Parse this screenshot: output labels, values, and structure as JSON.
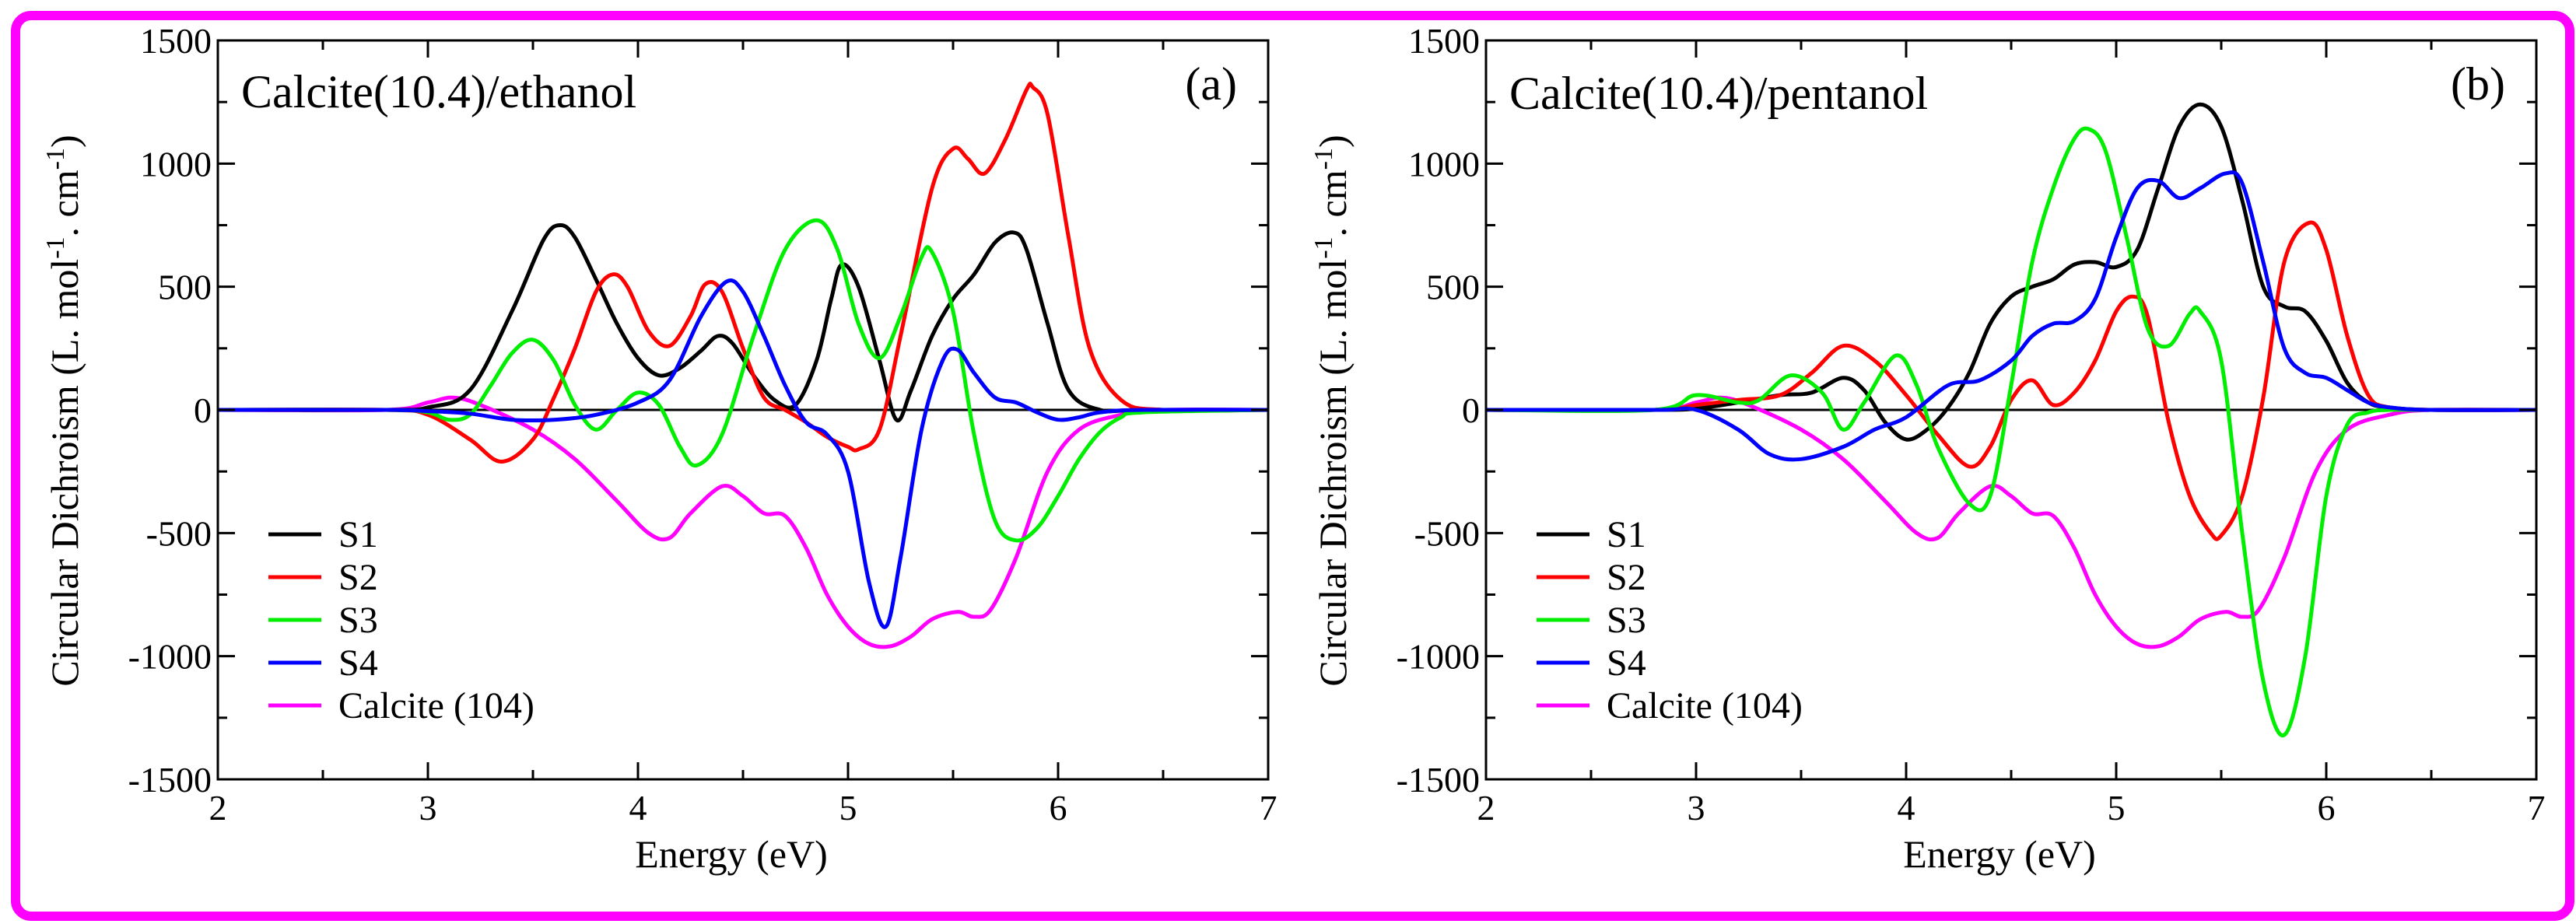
{
  "figure": {
    "border_color": "#ff00ff"
  },
  "chart_data": [
    {
      "type": "line",
      "title": "Calcite(10.4)/ethanol",
      "panel_label": "(a)",
      "xlabel": "Energy (eV)",
      "ylabel": "Circular Dichroism (L. mol-1. cm-1)",
      "ylabel_parts": {
        "main": "Circular Dichroism (L. mol",
        "sup1": "-1",
        "mid": ". cm",
        "sup2": "-1",
        "end": ")"
      },
      "xlim": [
        2,
        7
      ],
      "ylim": [
        -1500,
        1500
      ],
      "xticks": [
        "2",
        "3",
        "4",
        "5",
        "6",
        "7"
      ],
      "yticks": [
        "1500",
        "1000",
        "500",
        "0",
        "-500",
        "-1000",
        "-1500"
      ],
      "legend_position": "bottom-left",
      "series": [
        {
          "name": "S1",
          "color": "#000000",
          "x": [
            2.0,
            2.8,
            3.0,
            3.2,
            3.4,
            3.55,
            3.63,
            3.7,
            3.8,
            3.9,
            4.0,
            4.1,
            4.2,
            4.3,
            4.38,
            4.45,
            4.55,
            4.65,
            4.75,
            4.85,
            4.92,
            4.97,
            5.05,
            5.15,
            5.23,
            5.3,
            5.4,
            5.5,
            5.6,
            5.7,
            5.79,
            5.85,
            5.95,
            6.05,
            6.2,
            6.4,
            7.0
          ],
          "values": [
            0,
            0,
            10,
            80,
            400,
            690,
            750,
            700,
            530,
            350,
            210,
            140,
            170,
            240,
            300,
            270,
            140,
            40,
            20,
            200,
            450,
            590,
            500,
            200,
            -40,
            80,
            300,
            450,
            550,
            680,
            720,
            650,
            350,
            80,
            0,
            0,
            0
          ]
        },
        {
          "name": "S2",
          "color": "#ff0000",
          "x": [
            2.0,
            2.8,
            3.0,
            3.2,
            3.35,
            3.5,
            3.6,
            3.7,
            3.8,
            3.88,
            3.95,
            4.05,
            4.15,
            4.25,
            4.32,
            4.4,
            4.5,
            4.6,
            4.7,
            4.8,
            4.9,
            5.0,
            5.05,
            5.15,
            5.25,
            5.4,
            5.5,
            5.57,
            5.65,
            5.75,
            5.85,
            5.88,
            5.95,
            6.05,
            6.15,
            6.3,
            6.5,
            7.0
          ],
          "values": [
            0,
            0,
            -20,
            -120,
            -210,
            -120,
            50,
            250,
            480,
            550,
            500,
            320,
            260,
            380,
            510,
            480,
            250,
            50,
            0,
            -50,
            -110,
            -150,
            -160,
            -80,
            300,
            900,
            1060,
            1020,
            960,
            1100,
            1300,
            1310,
            1200,
            700,
            250,
            40,
            0,
            0
          ]
        },
        {
          "name": "S3",
          "color": "#00ee00",
          "x": [
            2.0,
            2.8,
            3.0,
            3.1,
            3.2,
            3.3,
            3.4,
            3.5,
            3.6,
            3.7,
            3.8,
            3.9,
            4.0,
            4.1,
            4.2,
            4.28,
            4.4,
            4.55,
            4.7,
            4.85,
            4.95,
            5.05,
            5.15,
            5.25,
            5.35,
            5.4,
            5.5,
            5.6,
            5.7,
            5.8,
            5.9,
            6.0,
            6.1,
            6.2,
            6.3,
            6.4,
            7.0
          ],
          "values": [
            0,
            0,
            -10,
            -40,
            -20,
            100,
            230,
            285,
            200,
            20,
            -80,
            0,
            70,
            20,
            -150,
            -225,
            -100,
            300,
            650,
            770,
            650,
            350,
            210,
            380,
            620,
            640,
            400,
            -100,
            -450,
            -530,
            -480,
            -350,
            -200,
            -90,
            -30,
            -10,
            0
          ]
        },
        {
          "name": "S4",
          "color": "#0000ff",
          "x": [
            2.0,
            2.8,
            3.0,
            3.2,
            3.4,
            3.6,
            3.8,
            4.0,
            4.15,
            4.3,
            4.42,
            4.5,
            4.6,
            4.7,
            4.8,
            4.9,
            5.0,
            5.1,
            5.18,
            5.25,
            5.35,
            5.45,
            5.52,
            5.6,
            5.7,
            5.8,
            5.9,
            6.0,
            6.1,
            6.2,
            6.4,
            7.0
          ],
          "values": [
            0,
            0,
            -5,
            -15,
            -40,
            -40,
            -20,
            30,
            120,
            380,
            520,
            480,
            300,
            100,
            -50,
            -100,
            -250,
            -700,
            -880,
            -600,
            -80,
            200,
            245,
            150,
            50,
            30,
            -10,
            -40,
            -30,
            -10,
            0,
            0
          ]
        },
        {
          "name": "Calcite (104)",
          "color": "#ff00ff",
          "x": [
            2.0,
            2.8,
            3.0,
            3.12,
            3.25,
            3.5,
            3.7,
            3.9,
            4.05,
            4.15,
            4.25,
            4.4,
            4.5,
            4.6,
            4.7,
            4.8,
            4.9,
            5.0,
            5.1,
            5.2,
            5.3,
            5.4,
            5.52,
            5.6,
            5.68,
            5.8,
            5.95,
            6.1,
            6.3,
            6.5,
            7.0
          ],
          "values": [
            0,
            0,
            30,
            50,
            20,
            -80,
            -200,
            -370,
            -500,
            -520,
            -420,
            -310,
            -350,
            -420,
            -430,
            -560,
            -750,
            -880,
            -950,
            -960,
            -920,
            -850,
            -820,
            -840,
            -810,
            -600,
            -250,
            -80,
            -20,
            0,
            0
          ]
        }
      ]
    },
    {
      "type": "line",
      "title": "Calcite(10.4)/pentanol",
      "panel_label": "(b)",
      "xlabel": "Energy (eV)",
      "ylabel": "Circular Dichroism (L. mol-1. cm-1)",
      "ylabel_parts": {
        "main": "Circular Dichroism (L. mol",
        "sup1": "-1",
        "mid": ". cm",
        "sup2": "-1",
        "end": ")"
      },
      "xlim": [
        2,
        7
      ],
      "ylim": [
        -1500,
        1500
      ],
      "xticks": [
        "2",
        "3",
        "4",
        "5",
        "6",
        "7"
      ],
      "yticks": [
        "1500",
        "1000",
        "500",
        "0",
        "-500",
        "-1000",
        "-1500"
      ],
      "legend_position": "bottom-left",
      "series": [
        {
          "name": "S1",
          "color": "#000000",
          "x": [
            2.0,
            2.8,
            3.0,
            3.2,
            3.4,
            3.55,
            3.7,
            3.8,
            3.9,
            4.0,
            4.1,
            4.2,
            4.3,
            4.4,
            4.5,
            4.6,
            4.7,
            4.8,
            4.9,
            5.0,
            5.1,
            5.2,
            5.3,
            5.4,
            5.5,
            5.6,
            5.7,
            5.8,
            5.9,
            6.0,
            6.1,
            6.2,
            6.3,
            6.5,
            7.0
          ],
          "values": [
            0,
            0,
            5,
            30,
            60,
            70,
            130,
            80,
            -50,
            -120,
            -80,
            10,
            150,
            350,
            460,
            500,
            530,
            590,
            600,
            580,
            650,
            900,
            1150,
            1240,
            1150,
            850,
            500,
            420,
            400,
            280,
            110,
            30,
            10,
            0,
            0
          ]
        },
        {
          "name": "S2",
          "color": "#ff0000",
          "x": [
            2.0,
            2.8,
            3.0,
            3.2,
            3.4,
            3.55,
            3.7,
            3.85,
            4.0,
            4.15,
            4.3,
            4.4,
            4.5,
            4.6,
            4.7,
            4.8,
            4.9,
            5.0,
            5.08,
            5.15,
            5.25,
            5.35,
            5.45,
            5.5,
            5.6,
            5.7,
            5.8,
            5.92,
            6.0,
            6.1,
            6.2,
            6.3,
            6.5,
            7.0
          ],
          "values": [
            0,
            0,
            20,
            40,
            60,
            150,
            260,
            200,
            60,
            -100,
            -230,
            -150,
            40,
            120,
            20,
            70,
            200,
            400,
            460,
            380,
            -50,
            -350,
            -500,
            -510,
            -350,
            50,
            600,
            760,
            650,
            300,
            60,
            10,
            0,
            0
          ]
        },
        {
          "name": "S3",
          "color": "#00ee00",
          "x": [
            2.0,
            2.8,
            3.0,
            3.2,
            3.3,
            3.45,
            3.6,
            3.7,
            3.8,
            3.95,
            4.05,
            4.15,
            4.3,
            4.4,
            4.5,
            4.6,
            4.7,
            4.8,
            4.87,
            4.95,
            5.05,
            5.15,
            5.25,
            5.35,
            5.4,
            5.5,
            5.6,
            5.7,
            5.8,
            5.9,
            6.0,
            6.1,
            6.2,
            6.3,
            6.5,
            7.0
          ],
          "values": [
            0,
            0,
            60,
            30,
            40,
            140,
            70,
            -80,
            30,
            220,
            100,
            -150,
            -380,
            -350,
            100,
            600,
            900,
            1100,
            1140,
            1050,
            700,
            330,
            260,
            390,
            400,
            200,
            -500,
            -1100,
            -1320,
            -1000,
            -350,
            -60,
            -10,
            0,
            0,
            0
          ]
        },
        {
          "name": "S4",
          "color": "#0000ff",
          "x": [
            2.0,
            2.8,
            3.0,
            3.2,
            3.35,
            3.5,
            3.7,
            3.85,
            4.0,
            4.2,
            4.35,
            4.5,
            4.6,
            4.7,
            4.8,
            4.9,
            5.0,
            5.1,
            5.2,
            5.3,
            5.4,
            5.52,
            5.6,
            5.7,
            5.8,
            5.9,
            6.0,
            6.1,
            6.2,
            6.3,
            6.5,
            7.0
          ],
          "values": [
            0,
            0,
            0,
            -80,
            -180,
            -200,
            -150,
            -80,
            -30,
            100,
            120,
            200,
            300,
            350,
            360,
            450,
            700,
            900,
            930,
            860,
            900,
            960,
            920,
            600,
            250,
            150,
            130,
            80,
            30,
            10,
            0,
            0
          ]
        },
        {
          "name": "Calcite (104)",
          "color": "#ff00ff",
          "x": [
            2.0,
            2.8,
            3.0,
            3.12,
            3.25,
            3.5,
            3.7,
            3.9,
            4.05,
            4.15,
            4.25,
            4.4,
            4.5,
            4.6,
            4.7,
            4.8,
            4.9,
            5.0,
            5.1,
            5.2,
            5.3,
            5.4,
            5.52,
            5.6,
            5.68,
            5.8,
            5.95,
            6.1,
            6.3,
            6.5,
            7.0
          ],
          "values": [
            0,
            0,
            30,
            50,
            20,
            -80,
            -200,
            -370,
            -500,
            -520,
            -420,
            -310,
            -350,
            -420,
            -430,
            -560,
            -750,
            -880,
            -950,
            -960,
            -920,
            -850,
            -820,
            -840,
            -810,
            -600,
            -250,
            -80,
            -20,
            0,
            0
          ]
        }
      ]
    }
  ]
}
